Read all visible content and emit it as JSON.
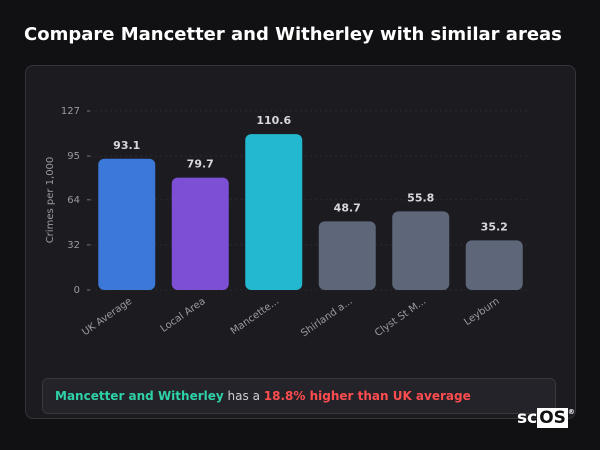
{
  "page_title": "Compare Mancetter and Witherley with similar areas",
  "chart_data": {
    "type": "bar",
    "y_label": "Crimes per 1,000",
    "categories": [
      "UK Average",
      "Local Area",
      "Mancette...",
      "Shirland a...",
      "Clyst St M...",
      "Leyburn"
    ],
    "values": [
      93.1,
      79.7,
      110.6,
      48.7,
      55.8,
      35.2
    ],
    "colors": [
      "#3b78d8",
      "#7c4fd4",
      "#22b8cf",
      "#5d6779",
      "#5d6779",
      "#5d6779"
    ],
    "ylim": [
      0,
      127
    ],
    "yticks": [
      0,
      32,
      64,
      95,
      127
    ],
    "grid": true
  },
  "summary": {
    "area": "Mancetter and Witherley",
    "middle": "has a",
    "highlight": "18.8% higher than UK average"
  },
  "logo": {
    "prefix": "sc",
    "boxed": "OS",
    "mark": "®"
  }
}
